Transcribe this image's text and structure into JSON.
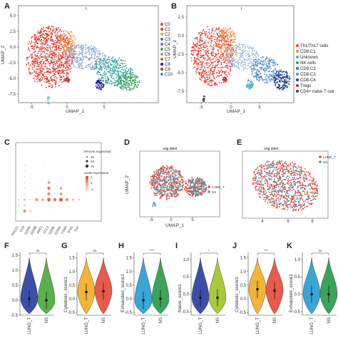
{
  "panels": {
    "A": {
      "letter": "A",
      "title": "f",
      "xlabel": "UMAP_1",
      "ylabel": "UMAP_2",
      "xticks": [
        "-5",
        "0",
        "5"
      ],
      "yticks": [
        "5.0",
        "2.5",
        "0.0",
        "-2.5",
        "-5.0",
        "-7.5"
      ],
      "legend": [
        "C0",
        "C1",
        "C2",
        "C3",
        "C4",
        "C5",
        "C6",
        "C7",
        "C8",
        "C9",
        "C10"
      ],
      "colors": [
        "#e8423a",
        "#d43f2a",
        "#f39c3a",
        "#4a6fb5",
        "#7b6fb0",
        "#3fa55a",
        "#c97fb0",
        "#a6763c",
        "#1a1a8c",
        "#b53838",
        "#2aa198"
      ]
    },
    "B": {
      "letter": "B",
      "title": "f",
      "xlabel": "UMAP_1",
      "ylabel": "UMAP_2",
      "xticks": [
        "-5",
        "0",
        "5"
      ],
      "yticks": [
        "2.5",
        "0.0",
        "-2.5",
        "-5.0",
        "-7.5"
      ],
      "legend": [
        "Th1/Th17 cells",
        "CD8-C1",
        "Unknown",
        "NK cells",
        "CD8-C2",
        "CD8-C3",
        "CD8-C4",
        "Tregs",
        "CD4+ naive T cell"
      ],
      "colors": [
        "#e8423a",
        "#ea8d3a",
        "#4ab3c6",
        "#3fa55a",
        "#2a7ab0",
        "#5a8fd0",
        "#1f3f8c",
        "#d42020",
        "#444444"
      ]
    },
    "C": {
      "letter": "C",
      "size_title": "Percent expressed",
      "size_values": [
        "25",
        "50",
        "75"
      ],
      "color_title": "Scale expression",
      "color_values": [
        "1",
        "0",
        "-1"
      ],
      "genes": [
        "PDCD1",
        "CD3",
        "GZMA",
        "GZMB",
        "PRF1",
        "CCL5",
        "GZMK",
        "GZMH",
        "CD8A",
        "IFNG",
        "TNF"
      ]
    },
    "D": {
      "letter": "D",
      "title": "orig.ident",
      "xlabel": "UMAP_1",
      "ylabel": "UMAP_2",
      "xticks": [
        "-5",
        "0",
        "5"
      ],
      "legend": [
        "LUNG_T",
        "NS"
      ],
      "colors": [
        "#e8423a",
        "#4a9aa8"
      ]
    },
    "E": {
      "letter": "E",
      "title": "orig.ident",
      "xticks": [
        "4",
        "6",
        "8"
      ],
      "legend": [
        "LUNG_T",
        "NS"
      ],
      "colors": [
        "#e8423a",
        "#4a9aa8"
      ]
    }
  },
  "chart_data": [
    {
      "type": "violin",
      "panel": "F",
      "categories": [
        "LUNG_T",
        "NS"
      ],
      "ylabel": "",
      "yticks": [
        "1.5",
        "1.0",
        "0.5",
        "0.0",
        "-0.5"
      ],
      "ylim": [
        -0.5,
        1.6
      ],
      "median": [
        0.05,
        0.0
      ],
      "significance": "ns",
      "colors": [
        "#3b4fa8",
        "#5ab04a"
      ]
    },
    {
      "type": "violin",
      "panel": "G",
      "categories": [
        "LUNG_T",
        "NS"
      ],
      "ylabel": "Cytotoxic_score1",
      "yticks": [
        "1.5",
        "1.0",
        "0.5",
        "0.0",
        "-0.5"
      ],
      "ylim": [
        -0.6,
        1.7
      ],
      "median": [
        0.25,
        0.28
      ],
      "significance": "ns",
      "colors": [
        "#f2b537",
        "#e85a4a"
      ]
    },
    {
      "type": "violin",
      "panel": "H",
      "categories": [
        "LUNG_T",
        "NS"
      ],
      "ylabel": "Exhausted_score1",
      "yticks": [
        "1.5",
        "1.0",
        "0.5",
        "0.0",
        "-0.5"
      ],
      "ylim": [
        -0.6,
        1.7
      ],
      "median": [
        -0.05,
        0.0
      ],
      "significance": "****",
      "colors": [
        "#3ba5d8",
        "#3aa55a"
      ]
    },
    {
      "type": "violin",
      "panel": "I",
      "categories": [
        "LUNG_T",
        "NS"
      ],
      "ylabel": "Naive_score1",
      "yticks": [
        "1.0",
        "0.5",
        "0.0",
        "-0.5"
      ],
      "ylim": [
        -0.6,
        1.2
      ],
      "median": [
        -0.1,
        -0.1
      ],
      "significance": "*",
      "colors": [
        "#3b4fa8",
        "#a8c93a"
      ]
    },
    {
      "type": "violin",
      "panel": "J",
      "categories": [
        "LUNG_T",
        "NS"
      ],
      "ylabel": "Cytotoxic_score1",
      "yticks": [
        "1.5",
        "1.0",
        "0.5",
        "0.0",
        "-0.5"
      ],
      "ylim": [
        -0.6,
        1.7
      ],
      "median": [
        0.35,
        0.3
      ],
      "significance": "***",
      "colors": [
        "#f2b537",
        "#e85a4a"
      ]
    },
    {
      "type": "violin",
      "panel": "K",
      "categories": [
        "LUNG_T",
        "NS"
      ],
      "ylabel": "Exhausted_score1",
      "yticks": [
        "1.0",
        "0.5",
        "0.0",
        "-0.5"
      ],
      "ylim": [
        -0.6,
        1.2
      ],
      "median": [
        0.0,
        0.0
      ],
      "significance": "ns",
      "colors": [
        "#3ba5d8",
        "#3aa55a"
      ]
    }
  ]
}
